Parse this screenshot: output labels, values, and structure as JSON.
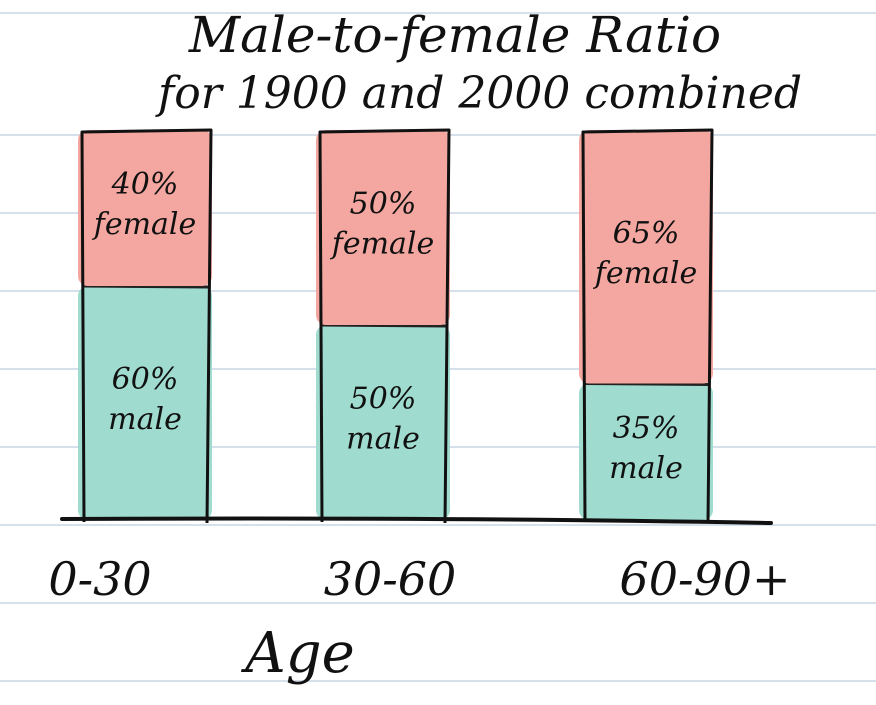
{
  "chart_data": {
    "type": "bar",
    "stacked": true,
    "percent": true,
    "title": "Male-to-female Ratio",
    "subtitle": "for 1900 and 2000 combined",
    "xlabel": "Age",
    "ylabel": "",
    "ylim": [
      0,
      100
    ],
    "categories": [
      "0-30",
      "30-60",
      "60-90+"
    ],
    "series": [
      {
        "key": "male",
        "values": [
          60,
          50,
          35
        ],
        "labels": [
          "60%\nmale",
          "50%\nmale",
          "35%\nmale"
        ],
        "color": "#9fdccf"
      },
      {
        "key": "female",
        "values": [
          40,
          50,
          65
        ],
        "labels": [
          "40%\nfemale",
          "50%\nfemale",
          "65%\nfemale"
        ],
        "color": "#f4a7a0"
      }
    ],
    "grid": false
  },
  "paper": {
    "background": "#ffffff",
    "rule_color": "#c9d6e3"
  }
}
